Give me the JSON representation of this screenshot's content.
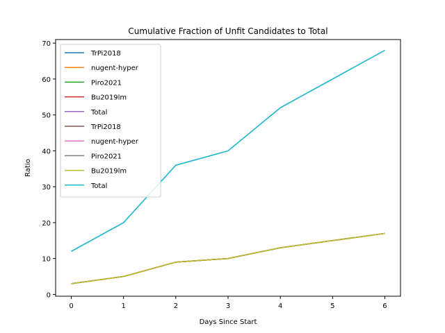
{
  "chart_data": {
    "type": "line",
    "title": "Cumulative Fraction of Unfit Candidates to Total",
    "xlabel": "Days Since Start",
    "ylabel": "Ratio",
    "xlim": [
      -0.3,
      6.3
    ],
    "ylim": [
      -0.5,
      71
    ],
    "x_ticks": [
      0,
      1,
      2,
      3,
      4,
      5,
      6
    ],
    "y_ticks": [
      0,
      10,
      20,
      30,
      40,
      50,
      60,
      70
    ],
    "grid": false,
    "legend_position": "upper-left",
    "x": [
      0,
      1,
      2,
      3,
      4,
      5,
      6
    ],
    "series": [
      {
        "name": "TrPi2018",
        "color": "#1f77b4",
        "values": [
          3,
          5,
          9,
          10,
          13,
          15,
          17
        ]
      },
      {
        "name": "nugent-hyper",
        "color": "#ff7f0e",
        "values": [
          3,
          5,
          9,
          10,
          13,
          15,
          17
        ]
      },
      {
        "name": "Piro2021",
        "color": "#2ca02c",
        "values": [
          3,
          5,
          9,
          10,
          13,
          15,
          17
        ]
      },
      {
        "name": "Bu2019lm",
        "color": "#d62728",
        "values": [
          3,
          5,
          9,
          10,
          13,
          15,
          17
        ]
      },
      {
        "name": "Total",
        "color": "#9467bd",
        "values": [
          12,
          20,
          36,
          40,
          52,
          60,
          68
        ]
      },
      {
        "name": "TrPi2018",
        "color": "#8c564b",
        "values": [
          3,
          5,
          9,
          10,
          13,
          15,
          17
        ]
      },
      {
        "name": "nugent-hyper",
        "color": "#e377c2",
        "values": [
          3,
          5,
          9,
          10,
          13,
          15,
          17
        ]
      },
      {
        "name": "Piro2021",
        "color": "#7f7f7f",
        "values": [
          3,
          5,
          9,
          10,
          13,
          15,
          17
        ]
      },
      {
        "name": "Bu2019lm",
        "color": "#bcbd22",
        "values": [
          3,
          5,
          9,
          10,
          13,
          15,
          17
        ]
      },
      {
        "name": "Total",
        "color": "#17becf",
        "values": [
          12,
          20,
          36,
          40,
          52,
          60,
          68
        ]
      }
    ]
  }
}
